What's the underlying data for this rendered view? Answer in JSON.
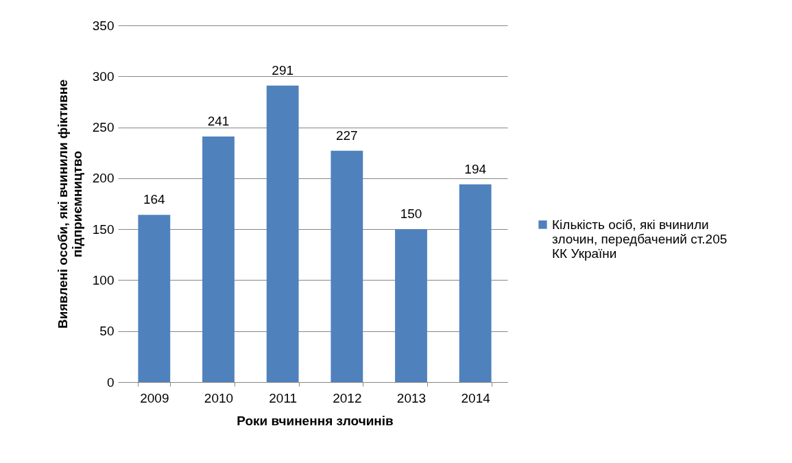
{
  "chart_data": {
    "type": "bar",
    "xlabel": "Роки вчинення злочинів",
    "ylabel": "Виявлені особи, які вчинили фіктивне підприємництво",
    "categories": [
      "2009",
      "2010",
      "2011",
      "2012",
      "2013",
      "2014"
    ],
    "series": [
      {
        "name": "Кількість осіб, які вчинили злочин, передбачений ст.205 КК України",
        "color": "#4f81bd",
        "values": [
          164,
          241,
          291,
          227,
          150,
          194
        ]
      }
    ],
    "ylim": [
      0,
      350
    ],
    "yticks": [
      0,
      50,
      100,
      150,
      200,
      250,
      300,
      350
    ],
    "grid": "y",
    "legend": "right",
    "data_labels": true
  }
}
